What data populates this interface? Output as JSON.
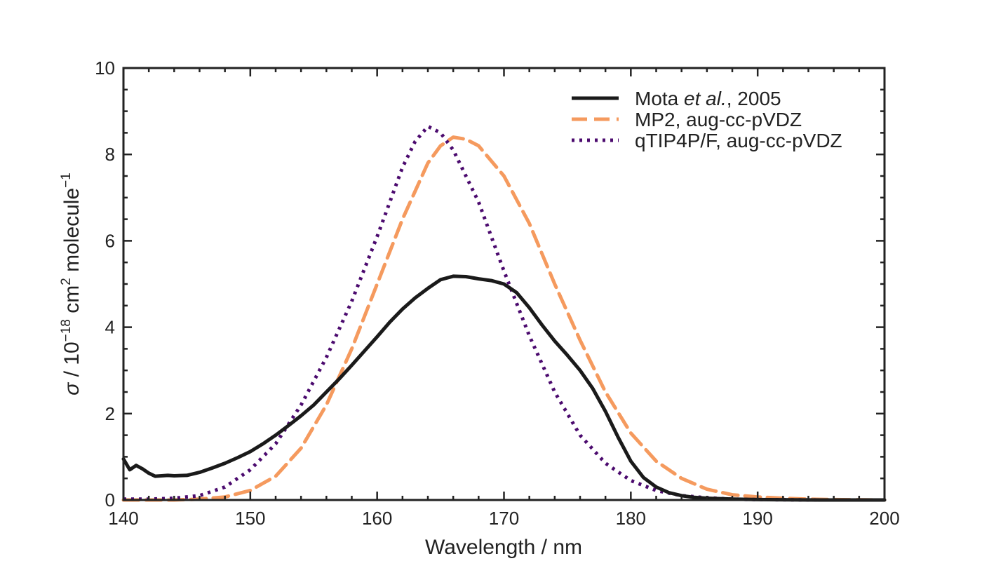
{
  "chart_data": {
    "type": "line",
    "xlabel": "Wavelength / nm",
    "ylabel": {
      "symbol": "σ",
      "unit_prefix": " / 10",
      "exp1": "−18",
      "unit_mid": " cm",
      "exp2": "2",
      "unit_end": " molecule",
      "exp3": "−1"
    },
    "xlim": [
      140,
      200
    ],
    "ylim": [
      0,
      10
    ],
    "xticks": [
      "140",
      "150",
      "160",
      "170",
      "180",
      "190",
      "200"
    ],
    "yticks": [
      "0",
      "2",
      "4",
      "6",
      "8",
      "10"
    ],
    "grid": false,
    "legend_position": "top-right",
    "series": [
      {
        "name": "Mota et al., 2005",
        "name_parts": [
          "Mota ",
          "et al.",
          ", 2005"
        ],
        "color": "#1a1a1a",
        "style": "solid",
        "x": [
          140,
          140.5,
          141,
          141.5,
          142,
          142.5,
          143,
          143.5,
          144,
          145,
          146,
          147,
          148,
          149,
          150,
          151,
          152,
          153,
          154,
          155,
          156,
          157,
          158,
          159,
          160,
          161,
          162,
          163,
          164,
          165,
          166,
          167,
          168,
          169,
          170,
          171,
          172,
          173,
          174,
          175,
          176,
          177,
          178,
          179,
          180,
          181,
          182,
          183,
          184,
          185,
          186,
          188,
          190,
          195,
          200
        ],
        "y": [
          0.95,
          0.7,
          0.8,
          0.72,
          0.62,
          0.55,
          0.56,
          0.57,
          0.56,
          0.57,
          0.64,
          0.74,
          0.85,
          0.98,
          1.12,
          1.3,
          1.5,
          1.72,
          1.95,
          2.2,
          2.5,
          2.8,
          3.12,
          3.45,
          3.78,
          4.12,
          4.42,
          4.68,
          4.9,
          5.1,
          5.18,
          5.17,
          5.12,
          5.08,
          5.0,
          4.8,
          4.45,
          4.05,
          3.68,
          3.35,
          3.0,
          2.58,
          2.05,
          1.45,
          0.9,
          0.52,
          0.3,
          0.17,
          0.1,
          0.06,
          0.04,
          0.02,
          0.01,
          0.0,
          0.0
        ]
      },
      {
        "name": "MP2, aug-cc-pVDZ",
        "color": "#f59a5e",
        "style": "dashed",
        "x": [
          140,
          142,
          144,
          146,
          148,
          150,
          152,
          154,
          156,
          158,
          160,
          162,
          164,
          165,
          166,
          167,
          168,
          170,
          172,
          174,
          176,
          178,
          180,
          182,
          184,
          186,
          188,
          190,
          192,
          194,
          196,
          200
        ],
        "y": [
          0.0,
          0.0,
          0.0,
          0.02,
          0.07,
          0.22,
          0.55,
          1.2,
          2.2,
          3.5,
          5.0,
          6.5,
          7.8,
          8.2,
          8.4,
          8.35,
          8.2,
          7.5,
          6.4,
          5.0,
          3.7,
          2.5,
          1.55,
          0.9,
          0.5,
          0.25,
          0.12,
          0.07,
          0.04,
          0.02,
          0.01,
          0.0
        ]
      },
      {
        "name": "qTIP4P/F, aug-cc-pVDZ",
        "color": "#4b0a6e",
        "style": "dotted",
        "x": [
          140,
          142,
          144,
          146,
          148,
          150,
          152,
          154,
          156,
          158,
          160,
          161,
          162,
          163,
          164,
          165,
          166,
          168,
          170,
          172,
          174,
          176,
          178,
          180,
          182,
          184,
          186,
          188,
          190,
          195,
          200
        ],
        "y": [
          0.02,
          0.02,
          0.04,
          0.1,
          0.3,
          0.7,
          1.3,
          2.2,
          3.3,
          4.6,
          6.1,
          6.9,
          7.7,
          8.3,
          8.65,
          8.5,
          8.1,
          6.9,
          5.3,
          3.8,
          2.5,
          1.5,
          0.85,
          0.45,
          0.22,
          0.1,
          0.05,
          0.02,
          0.01,
          0.0,
          0.0
        ]
      }
    ]
  }
}
